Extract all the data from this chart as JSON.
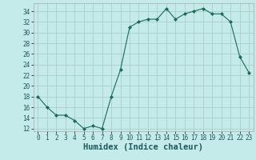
{
  "xlabel": "Humidex (Indice chaleur)",
  "x": [
    0,
    1,
    2,
    3,
    4,
    5,
    6,
    7,
    8,
    9,
    10,
    11,
    12,
    13,
    14,
    15,
    16,
    17,
    18,
    19,
    20,
    21,
    22,
    23
  ],
  "y": [
    18,
    16,
    14.5,
    14.5,
    13.5,
    12,
    12.5,
    12,
    18,
    23,
    31,
    32,
    32.5,
    32.5,
    34.5,
    32.5,
    33.5,
    34,
    34.5,
    33.5,
    33.5,
    32,
    25.5,
    22.5
  ],
  "line_color": "#1a6b5a",
  "marker": "D",
  "marker_size": 2.0,
  "bg_color": "#c5eaea",
  "grid_color": "#aacece",
  "ylim": [
    11.5,
    35.5
  ],
  "yticks": [
    12,
    14,
    16,
    18,
    20,
    22,
    24,
    26,
    28,
    30,
    32,
    34
  ],
  "xlim": [
    -0.5,
    23.5
  ],
  "xticks": [
    0,
    1,
    2,
    3,
    4,
    5,
    6,
    7,
    8,
    9,
    10,
    11,
    12,
    13,
    14,
    15,
    16,
    17,
    18,
    19,
    20,
    21,
    22,
    23
  ],
  "tick_fontsize": 5.5,
  "label_fontsize": 7.5
}
